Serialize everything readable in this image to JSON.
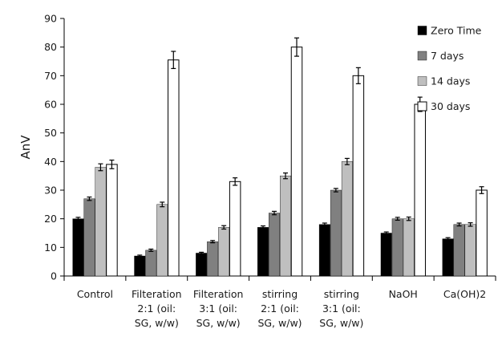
{
  "chart_data": {
    "type": "bar",
    "ylabel": "AnV",
    "xlabel": "",
    "ylim": [
      0,
      90
    ],
    "yticks": [
      0,
      10,
      20,
      30,
      40,
      50,
      60,
      70,
      80,
      90
    ],
    "grid": false,
    "legend_position": "top-right",
    "categories": [
      [
        "Control"
      ],
      [
        "Filteration",
        "2:1 (oil:",
        "SG, w/w)"
      ],
      [
        "Filteration",
        "3:1 (oil:",
        "SG, w/w)"
      ],
      [
        "stirring",
        "2:1 (oil:",
        "SG, w/w)"
      ],
      [
        "stirring",
        "3:1 (oil:",
        "SG, w/w)"
      ],
      [
        "NaOH"
      ],
      [
        "Ca(OH)2"
      ]
    ],
    "series": [
      {
        "name": "Zero Time",
        "color": "#000000",
        "values": [
          20,
          7,
          8,
          17,
          18,
          15,
          13
        ],
        "errors": [
          0.5,
          0.3,
          0.3,
          0.5,
          0.5,
          0.4,
          0.4
        ]
      },
      {
        "name": "7 days",
        "color": "#808080",
        "values": [
          27,
          9,
          12,
          22,
          30,
          20,
          18
        ],
        "errors": [
          0.6,
          0.4,
          0.4,
          0.6,
          0.6,
          0.5,
          0.5
        ]
      },
      {
        "name": "14 days",
        "color": "#bfbfbf",
        "values": [
          38,
          25,
          17,
          35,
          40,
          20,
          18
        ],
        "errors": [
          1.2,
          0.8,
          0.6,
          1.0,
          1.1,
          0.6,
          0.6
        ]
      },
      {
        "name": "30 days",
        "color": "#ffffff",
        "values": [
          39,
          75.5,
          33,
          80,
          70,
          60,
          30
        ],
        "errors": [
          1.5,
          3.0,
          1.3,
          3.2,
          2.8,
          2.5,
          1.2
        ]
      }
    ]
  }
}
